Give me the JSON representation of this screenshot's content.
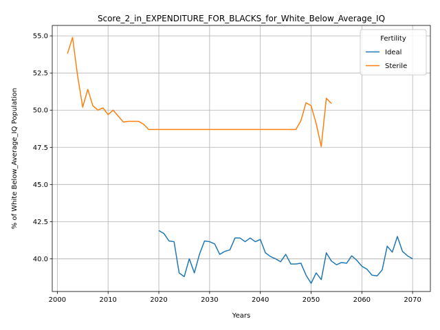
{
  "chart_data": {
    "type": "line",
    "title": "Score_2_in_EXPENDITURE_FOR_BLACKS_for_White_Below_Average_IQ",
    "xlabel": "Years",
    "ylabel": "% of White Below_Average_IQ Population",
    "xlim": [
      1999,
      2073.5
    ],
    "ylim": [
      37.8,
      55.7
    ],
    "xticks": [
      2000,
      2010,
      2020,
      2030,
      2040,
      2050,
      2060,
      2070
    ],
    "yticks": [
      40.0,
      42.5,
      45.0,
      47.5,
      50.0,
      52.5,
      55.0
    ],
    "xtick_labels": [
      "2000",
      "2010",
      "2020",
      "2030",
      "2040",
      "2050",
      "2060",
      "2070"
    ],
    "ytick_labels": [
      "40.0",
      "42.5",
      "45.0",
      "47.5",
      "50.0",
      "52.5",
      "55.0"
    ],
    "grid": true,
    "legend": {
      "title": "Fertility",
      "placement": "top-right"
    },
    "series": [
      {
        "name": "Ideal",
        "color": "#1f77b4",
        "x": [
          2020,
          2021,
          2022,
          2023,
          2024,
          2025,
          2026,
          2027,
          2028,
          2029,
          2030,
          2031,
          2032,
          2033,
          2034,
          2035,
          2036,
          2037,
          2038,
          2039,
          2040,
          2041,
          2042,
          2043,
          2044,
          2045,
          2046,
          2047,
          2048,
          2049,
          2050,
          2051,
          2052,
          2053,
          2054,
          2055,
          2056,
          2057,
          2058,
          2059,
          2060,
          2061,
          2062,
          2063,
          2064,
          2065,
          2066,
          2067,
          2068,
          2069,
          2070
        ],
        "values": [
          41.9,
          41.7,
          41.2,
          41.15,
          39.05,
          38.8,
          40.0,
          39.05,
          40.3,
          41.2,
          41.15,
          41.0,
          40.3,
          40.5,
          40.6,
          41.4,
          41.4,
          41.15,
          41.4,
          41.15,
          41.3,
          40.4,
          40.15,
          40.0,
          39.8,
          40.3,
          39.65,
          39.65,
          39.7,
          38.9,
          38.35,
          39.05,
          38.6,
          40.4,
          39.85,
          39.6,
          39.75,
          39.7,
          40.2,
          39.9,
          39.5,
          39.3,
          38.9,
          38.85,
          39.25,
          40.85,
          40.45,
          41.5,
          40.5,
          40.2,
          40.0
        ]
      },
      {
        "name": "Sterile",
        "color": "#ff7f0e",
        "x": [
          2002,
          2003,
          2004,
          2005,
          2006,
          2007,
          2008,
          2009,
          2010,
          2011,
          2012,
          2013,
          2014,
          2015,
          2016,
          2017,
          2018,
          2019,
          2020,
          2021,
          2022,
          2023,
          2024,
          2025,
          2026,
          2027,
          2028,
          2029,
          2030,
          2031,
          2032,
          2033,
          2034,
          2035,
          2036,
          2037,
          2038,
          2039,
          2040,
          2041,
          2042,
          2043,
          2044,
          2045,
          2046,
          2047,
          2048,
          2049,
          2050,
          2051,
          2052,
          2053,
          2054
        ],
        "values": [
          53.8,
          54.9,
          52.3,
          50.2,
          51.4,
          50.3,
          50.0,
          50.15,
          49.7,
          50.0,
          49.6,
          49.2,
          49.25,
          49.25,
          49.25,
          49.05,
          48.7,
          48.7,
          48.7,
          48.7,
          48.7,
          48.7,
          48.7,
          48.7,
          48.7,
          48.7,
          48.7,
          48.7,
          48.7,
          48.7,
          48.7,
          48.7,
          48.7,
          48.7,
          48.7,
          48.7,
          48.7,
          48.7,
          48.7,
          48.7,
          48.7,
          48.7,
          48.7,
          48.7,
          48.7,
          48.7,
          49.3,
          50.5,
          50.3,
          49.1,
          47.55,
          50.8,
          50.45
        ]
      }
    ]
  }
}
